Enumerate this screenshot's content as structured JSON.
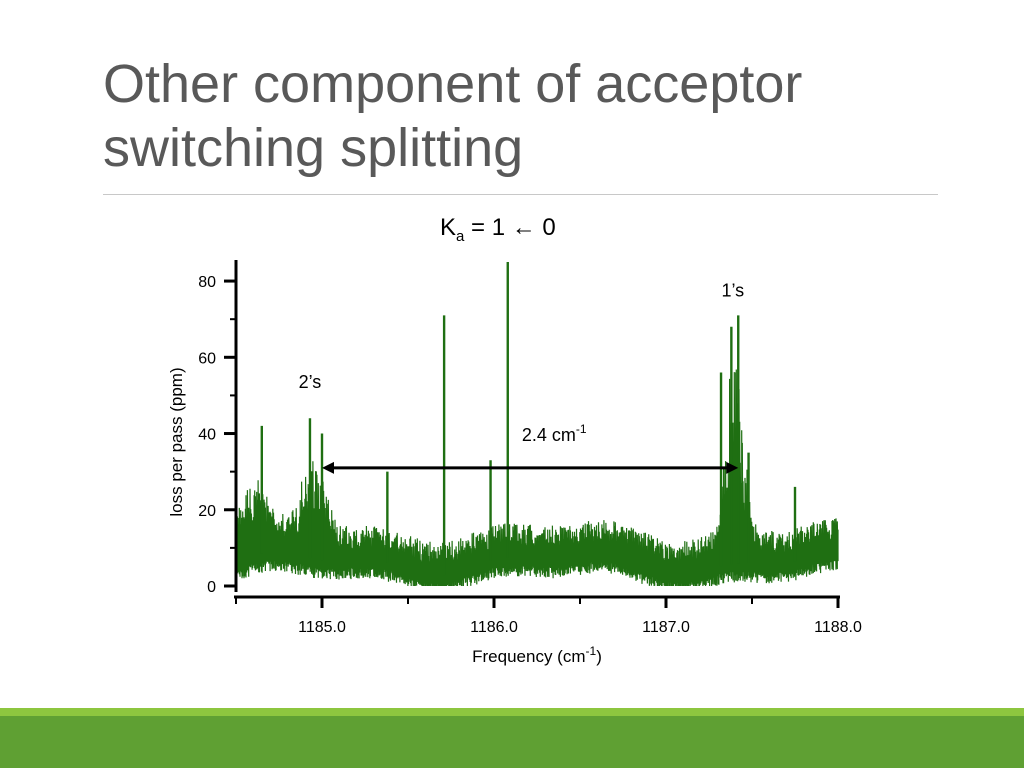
{
  "slide": {
    "title_line1": "Other component of acceptor",
    "title_line2": "switching splitting",
    "colors": {
      "title": "#595959",
      "footer_bar": "#5fa033",
      "footer_accent": "#8dc63f",
      "trace": "#1f6f12"
    }
  },
  "chart_data": {
    "type": "line",
    "title": "Ka = 1 ← 0",
    "title_parts": {
      "main": "K",
      "sub": "a",
      "rest": " = 1 ← 0"
    },
    "xlabel": "Frequency (cm-1)",
    "xlabel_parts": {
      "main": "Frequency (cm",
      "sup": "-1",
      "end": ")"
    },
    "ylabel": "loss per pass (ppm)",
    "xlim": [
      1184.5,
      1188.0
    ],
    "ylim": [
      0,
      85
    ],
    "x_ticks": [
      1185.0,
      1186.0,
      1187.0,
      1188.0
    ],
    "x_tick_labels": [
      "1185.0",
      "1186.0",
      "1187.0",
      "1188.0"
    ],
    "y_ticks": [
      0,
      20,
      40,
      60,
      80
    ],
    "y_tick_labels": [
      "0",
      "20",
      "40",
      "60",
      "80"
    ],
    "grid": false,
    "series": [
      {
        "color": "#1f6f12",
        "x": [
          1184.5,
          1184.6,
          1184.65,
          1184.7,
          1184.8,
          1184.9,
          1184.93,
          1184.95,
          1185.0,
          1185.1,
          1185.2,
          1185.3,
          1185.38,
          1185.5,
          1185.6,
          1185.7,
          1185.8,
          1185.9,
          1185.98,
          1186.06,
          1186.2,
          1186.4,
          1186.6,
          1186.8,
          1187.0,
          1187.2,
          1187.3,
          1187.35,
          1187.4,
          1187.45,
          1187.5,
          1187.6,
          1187.8,
          1188.0
        ],
        "y": [
          9,
          10,
          42,
          10,
          12,
          15,
          30,
          44,
          20,
          12,
          6,
          6,
          30,
          9,
          8,
          71,
          7,
          6,
          33,
          85,
          6,
          5,
          9,
          6,
          6,
          5,
          12,
          56,
          71,
          40,
          13,
          9,
          6,
          8
        ]
      }
    ],
    "peaks": [
      {
        "x": 1184.65,
        "y": 42
      },
      {
        "x": 1184.93,
        "y": 44
      },
      {
        "x": 1185.0,
        "y": 40
      },
      {
        "x": 1185.38,
        "y": 30
      },
      {
        "x": 1185.71,
        "y": 71
      },
      {
        "x": 1185.98,
        "y": 33
      },
      {
        "x": 1186.08,
        "y": 85
      },
      {
        "x": 1187.32,
        "y": 56
      },
      {
        "x": 1187.38,
        "y": 68
      },
      {
        "x": 1187.42,
        "y": 71
      },
      {
        "x": 1187.48,
        "y": 35
      },
      {
        "x": 1187.75,
        "y": 26
      }
    ],
    "annotations": {
      "label_left": {
        "text": "2’s",
        "x": 1184.93,
        "y": 52
      },
      "label_right": {
        "text": "1’s",
        "x": 1187.4,
        "y": 76
      },
      "split_label": {
        "main": "2.4 cm",
        "sup": "-1",
        "x": 1186.35,
        "y": 38
      },
      "arrow": {
        "x1": 1185.0,
        "x2": 1187.42,
        "y": 31
      }
    }
  }
}
